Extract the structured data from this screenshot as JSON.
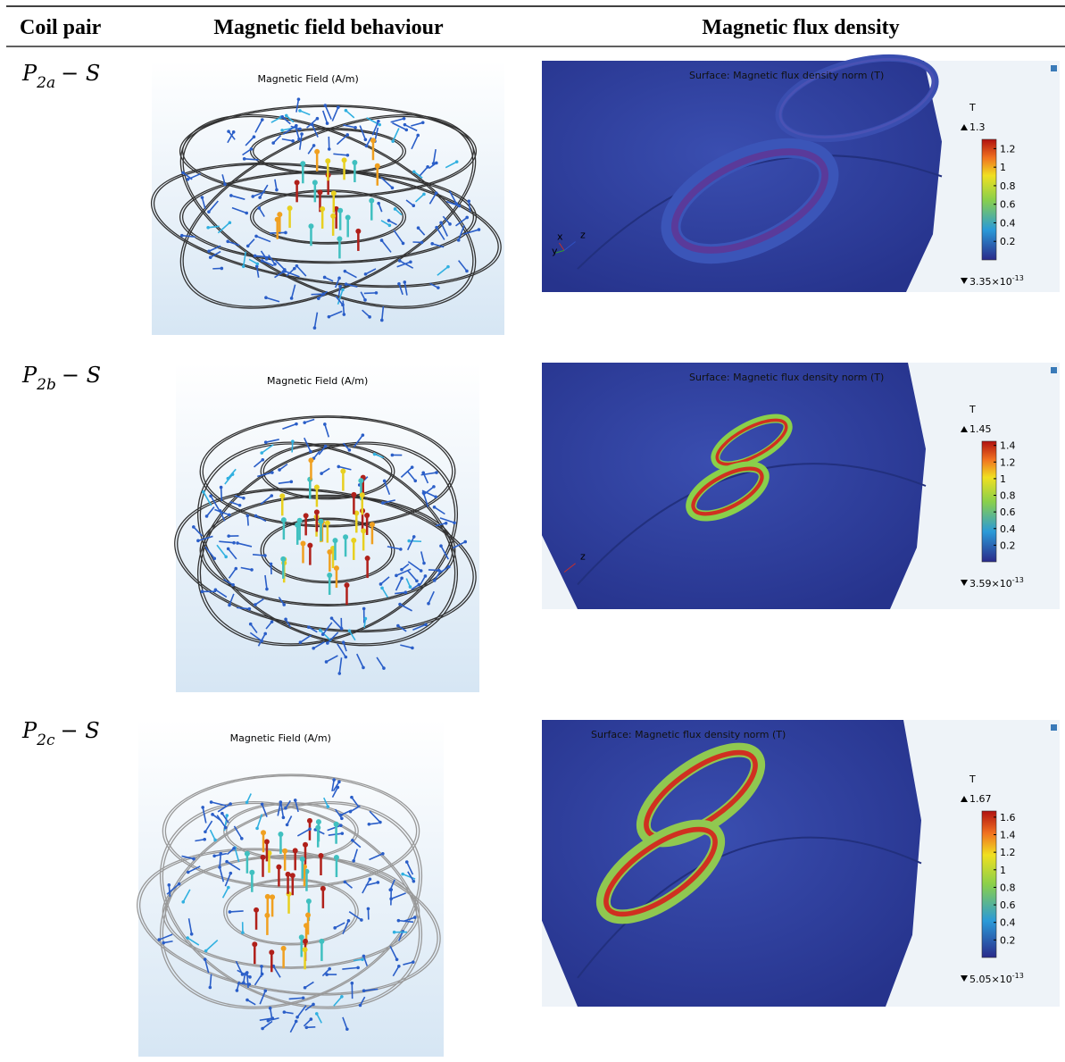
{
  "table": {
    "headers": [
      "Coil pair",
      "Magnetic field behaviour",
      "Magnetic flux density"
    ],
    "rows": [
      {
        "label": {
          "base": "P",
          "sub": "2a",
          "rest": "− S"
        },
        "field": {
          "title": "Magnetic Field (A/m)"
        },
        "flux": {
          "title": "Surface: Magnetic flux density norm (T)",
          "unit": "T",
          "max": 1.3,
          "min": "3.35×10",
          "min_exp": "-13",
          "ticks": [
            1.2,
            1,
            0.8,
            0.6,
            0.4,
            0.2
          ],
          "axes": [
            "x",
            "y",
            "z"
          ]
        }
      },
      {
        "label": {
          "base": "P",
          "sub": "2b",
          "rest": "− S"
        },
        "field": {
          "title": "Magnetic Field (A/m)"
        },
        "flux": {
          "title": "Surface: Magnetic flux density norm (T)",
          "unit": "T",
          "max": 1.45,
          "min": "3.59×10",
          "min_exp": "-13",
          "ticks": [
            1.4,
            1.2,
            1,
            0.8,
            0.6,
            0.4,
            0.2
          ],
          "axes": [
            "z"
          ]
        }
      },
      {
        "label": {
          "base": "P",
          "sub": "2c",
          "rest": "− S"
        },
        "field": {
          "title": "Magnetic Field (A/m)"
        },
        "flux": {
          "title": "Surface: Magnetic flux density norm (T)",
          "unit": "T",
          "max": 1.67,
          "min": "5.05×10",
          "min_exp": "-13",
          "ticks": [
            1.6,
            1.4,
            1.2,
            1,
            0.8,
            0.6,
            0.4,
            0.2
          ],
          "axes": []
        }
      }
    ]
  }
}
